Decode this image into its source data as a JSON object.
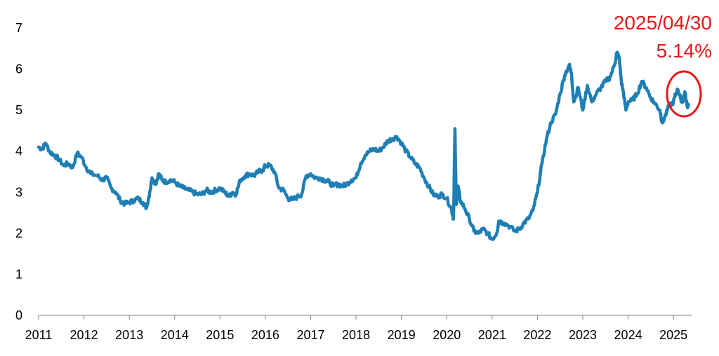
{
  "colors": {
    "line": "#1f7fb4",
    "axis": "#7f7f7f",
    "annotation": "#e31919",
    "text": "#000000"
  },
  "chart_data": {
    "type": "line",
    "title": "",
    "xlabel": "",
    "ylabel": "",
    "grid": false,
    "xlim": [
      2011.0,
      2025.4
    ],
    "ylim": [
      0,
      7
    ],
    "x_ticks": [
      "2011",
      "2012",
      "2013",
      "2014",
      "2015",
      "2016",
      "2017",
      "2018",
      "2019",
      "2020",
      "2021",
      "2022",
      "2023",
      "2024",
      "2025"
    ],
    "y_ticks": [
      "0",
      "1",
      "2",
      "3",
      "4",
      "5",
      "6",
      "7"
    ],
    "series": [
      {
        "points": [
          [
            2011.0,
            4.1
          ],
          [
            2011.08,
            4.05
          ],
          [
            2011.15,
            4.2
          ],
          [
            2011.25,
            3.98
          ],
          [
            2011.35,
            3.9
          ],
          [
            2011.45,
            3.8
          ],
          [
            2011.55,
            3.65
          ],
          [
            2011.65,
            3.7
          ],
          [
            2011.75,
            3.6
          ],
          [
            2011.85,
            3.95
          ],
          [
            2011.95,
            3.85
          ],
          [
            2012.05,
            3.6
          ],
          [
            2012.15,
            3.45
          ],
          [
            2012.3,
            3.4
          ],
          [
            2012.4,
            3.3
          ],
          [
            2012.5,
            3.35
          ],
          [
            2012.6,
            3.1
          ],
          [
            2012.7,
            3.0
          ],
          [
            2012.8,
            2.8
          ],
          [
            2012.9,
            2.72
          ],
          [
            2013.0,
            2.75
          ],
          [
            2013.1,
            2.8
          ],
          [
            2013.2,
            2.85
          ],
          [
            2013.3,
            2.75
          ],
          [
            2013.38,
            2.62
          ],
          [
            2013.45,
            3.0
          ],
          [
            2013.5,
            3.35
          ],
          [
            2013.58,
            3.2
          ],
          [
            2013.65,
            3.45
          ],
          [
            2013.72,
            3.3
          ],
          [
            2013.8,
            3.25
          ],
          [
            2013.9,
            3.3
          ],
          [
            2014.0,
            3.25
          ],
          [
            2014.1,
            3.15
          ],
          [
            2014.2,
            3.1
          ],
          [
            2014.3,
            3.05
          ],
          [
            2014.4,
            3.0
          ],
          [
            2014.5,
            2.95
          ],
          [
            2014.6,
            2.95
          ],
          [
            2014.7,
            3.05
          ],
          [
            2014.8,
            3.0
          ],
          [
            2014.9,
            3.05
          ],
          [
            2015.0,
            3.1
          ],
          [
            2015.1,
            3.0
          ],
          [
            2015.2,
            2.9
          ],
          [
            2015.28,
            3.0
          ],
          [
            2015.35,
            2.95
          ],
          [
            2015.45,
            3.3
          ],
          [
            2015.55,
            3.4
          ],
          [
            2015.65,
            3.45
          ],
          [
            2015.75,
            3.4
          ],
          [
            2015.85,
            3.5
          ],
          [
            2015.95,
            3.55
          ],
          [
            2016.0,
            3.65
          ],
          [
            2016.1,
            3.65
          ],
          [
            2016.2,
            3.5
          ],
          [
            2016.3,
            3.1
          ],
          [
            2016.4,
            3.05
          ],
          [
            2016.5,
            2.85
          ],
          [
            2016.6,
            2.82
          ],
          [
            2016.7,
            2.88
          ],
          [
            2016.8,
            2.95
          ],
          [
            2016.9,
            3.4
          ],
          [
            2017.0,
            3.45
          ],
          [
            2017.1,
            3.35
          ],
          [
            2017.2,
            3.35
          ],
          [
            2017.3,
            3.3
          ],
          [
            2017.4,
            3.25
          ],
          [
            2017.5,
            3.15
          ],
          [
            2017.6,
            3.2
          ],
          [
            2017.7,
            3.15
          ],
          [
            2017.8,
            3.2
          ],
          [
            2017.9,
            3.3
          ],
          [
            2018.0,
            3.35
          ],
          [
            2018.1,
            3.7
          ],
          [
            2018.2,
            3.9
          ],
          [
            2018.3,
            4.0
          ],
          [
            2018.4,
            4.05
          ],
          [
            2018.5,
            4.0
          ],
          [
            2018.6,
            4.1
          ],
          [
            2018.7,
            4.25
          ],
          [
            2018.8,
            4.3
          ],
          [
            2018.9,
            4.35
          ],
          [
            2019.0,
            4.2
          ],
          [
            2019.1,
            4.0
          ],
          [
            2019.2,
            3.85
          ],
          [
            2019.3,
            3.7
          ],
          [
            2019.4,
            3.6
          ],
          [
            2019.5,
            3.35
          ],
          [
            2019.6,
            3.15
          ],
          [
            2019.7,
            2.95
          ],
          [
            2019.8,
            2.9
          ],
          [
            2019.9,
            2.95
          ],
          [
            2020.0,
            2.85
          ],
          [
            2020.1,
            2.6
          ],
          [
            2020.15,
            2.35
          ],
          [
            2020.18,
            4.55
          ],
          [
            2020.21,
            2.7
          ],
          [
            2020.25,
            3.15
          ],
          [
            2020.3,
            2.8
          ],
          [
            2020.4,
            2.6
          ],
          [
            2020.5,
            2.35
          ],
          [
            2020.6,
            2.05
          ],
          [
            2020.7,
            2.0
          ],
          [
            2020.8,
            2.1
          ],
          [
            2020.9,
            2.0
          ],
          [
            2021.0,
            1.85
          ],
          [
            2021.1,
            2.0
          ],
          [
            2021.15,
            2.3
          ],
          [
            2021.25,
            2.25
          ],
          [
            2021.35,
            2.2
          ],
          [
            2021.5,
            2.05
          ],
          [
            2021.6,
            2.1
          ],
          [
            2021.7,
            2.25
          ],
          [
            2021.8,
            2.35
          ],
          [
            2021.9,
            2.55
          ],
          [
            2022.0,
            3.0
          ],
          [
            2022.1,
            3.7
          ],
          [
            2022.2,
            4.3
          ],
          [
            2022.3,
            4.7
          ],
          [
            2022.4,
            4.9
          ],
          [
            2022.5,
            5.4
          ],
          [
            2022.6,
            5.85
          ],
          [
            2022.7,
            6.1
          ],
          [
            2022.75,
            5.9
          ],
          [
            2022.8,
            5.2
          ],
          [
            2022.9,
            5.55
          ],
          [
            2023.0,
            5.0
          ],
          [
            2023.1,
            5.6
          ],
          [
            2023.2,
            5.2
          ],
          [
            2023.3,
            5.4
          ],
          [
            2023.4,
            5.55
          ],
          [
            2023.5,
            5.7
          ],
          [
            2023.6,
            5.8
          ],
          [
            2023.7,
            6.1
          ],
          [
            2023.75,
            6.4
          ],
          [
            2023.8,
            6.3
          ],
          [
            2023.85,
            5.7
          ],
          [
            2023.9,
            5.4
          ],
          [
            2023.95,
            5.0
          ],
          [
            2024.0,
            5.2
          ],
          [
            2024.1,
            5.25
          ],
          [
            2024.2,
            5.4
          ],
          [
            2024.3,
            5.7
          ],
          [
            2024.4,
            5.55
          ],
          [
            2024.5,
            5.3
          ],
          [
            2024.6,
            5.15
          ],
          [
            2024.7,
            5.0
          ],
          [
            2024.75,
            4.7
          ],
          [
            2024.8,
            4.8
          ],
          [
            2024.9,
            5.1
          ],
          [
            2025.0,
            5.2
          ],
          [
            2025.05,
            5.4
          ],
          [
            2025.1,
            5.5
          ],
          [
            2025.15,
            5.3
          ],
          [
            2025.2,
            5.2
          ],
          [
            2025.25,
            5.45
          ],
          [
            2025.3,
            5.1
          ],
          [
            2025.33,
            5.14
          ]
        ]
      }
    ],
    "annotations": [
      {
        "text": "2025/04/30"
      },
      {
        "text": "5.14%"
      }
    ]
  }
}
